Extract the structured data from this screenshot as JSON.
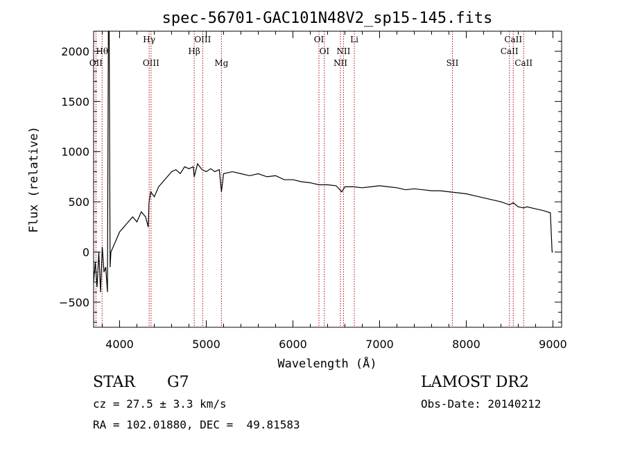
{
  "chart_data": {
    "type": "line",
    "title": "spec-56701-GAC101N48V2_sp15-145.fits",
    "xlabel": "Wavelength (Å)",
    "ylabel": "Flux (relative)",
    "xlim": [
      3700,
      9100
    ],
    "ylim": [
      -750,
      2200
    ],
    "xticks": [
      4000,
      5000,
      6000,
      7000,
      8000,
      9000
    ],
    "yticks": [
      -500,
      0,
      500,
      1000,
      1500,
      2000
    ],
    "grid": false,
    "series": [
      {
        "x": [
          3700,
          3720,
          3740,
          3760,
          3780,
          3800,
          3820,
          3840,
          3860,
          3870,
          3880,
          3890,
          3900,
          3950,
          4000,
          4050,
          4100,
          4150,
          4200,
          4250,
          4300,
          4330,
          4340,
          4360,
          4400,
          4450,
          4500,
          4550,
          4600,
          4650,
          4700,
          4750,
          4800,
          4850,
          4861,
          4900,
          4950,
          5000,
          5050,
          5100,
          5150,
          5175,
          5200,
          5300,
          5400,
          5500,
          5600,
          5700,
          5800,
          5900,
          6000,
          6100,
          6200,
          6300,
          6400,
          6500,
          6563,
          6600,
          6700,
          6800,
          6900,
          7000,
          7100,
          7200,
          7300,
          7400,
          7500,
          7600,
          7700,
          7800,
          7900,
          8000,
          8100,
          8200,
          8300,
          8400,
          8498,
          8542,
          8600,
          8662,
          8700,
          8800,
          8900,
          8970,
          8990,
          9000
        ],
        "y": [
          -300,
          -100,
          -350,
          0,
          -400,
          50,
          -200,
          -150,
          -400,
          2200,
          2200,
          -150,
          0,
          100,
          200,
          250,
          300,
          350,
          300,
          400,
          350,
          250,
          500,
          600,
          550,
          650,
          700,
          750,
          800,
          820,
          780,
          850,
          830,
          850,
          750,
          880,
          820,
          800,
          830,
          800,
          820,
          600,
          780,
          800,
          780,
          760,
          780,
          750,
          760,
          720,
          720,
          700,
          690,
          670,
          670,
          660,
          600,
          650,
          650,
          640,
          650,
          660,
          650,
          640,
          620,
          630,
          620,
          610,
          610,
          600,
          590,
          580,
          560,
          540,
          520,
          500,
          470,
          490,
          450,
          440,
          450,
          430,
          410,
          390,
          0,
          0
        ]
      }
    ],
    "lines": [
      {
        "label": "Hθ",
        "x": 3798,
        "row": 1
      },
      {
        "label": "OII",
        "x": 3727,
        "row": 2
      },
      {
        "label": "Hγ",
        "x": 4341,
        "row": 0
      },
      {
        "label": "OIII",
        "x": 4363,
        "row": 2
      },
      {
        "label": "Hβ",
        "x": 4861,
        "row": 1
      },
      {
        "label": "OIII",
        "x": 4959,
        "row": 0
      },
      {
        "label": "Mg",
        "x": 5175,
        "row": 2
      },
      {
        "label": "OI",
        "x": 6300,
        "row": 0
      },
      {
        "label": "OI",
        "x": 6363,
        "row": 1
      },
      {
        "label": "NII",
        "x": 6548,
        "row": 2
      },
      {
        "label": "NII",
        "x": 6583,
        "row": 1
      },
      {
        "label": "Li",
        "x": 6708,
        "row": 0
      },
      {
        "label": "SII",
        "x": 7840,
        "row": 2
      },
      {
        "label": "CaII",
        "x": 8498,
        "row": 1
      },
      {
        "label": "CaII",
        "x": 8542,
        "row": 0
      },
      {
        "label": "CaII",
        "x": 8662,
        "row": 2
      }
    ]
  },
  "info": {
    "object_class": "STAR",
    "subclass": "G7",
    "redshift": "cz = 27.5 ± 3.3 km/s",
    "coords": "RA = 102.01880, DEC =  49.81583",
    "survey": "LAMOST DR2",
    "obs_date": "Obs-Date: 20140212"
  },
  "colors": {
    "spectrum": "#000000",
    "line_markers": "#b40000",
    "axes": "#000000",
    "background": "#ffffff"
  }
}
